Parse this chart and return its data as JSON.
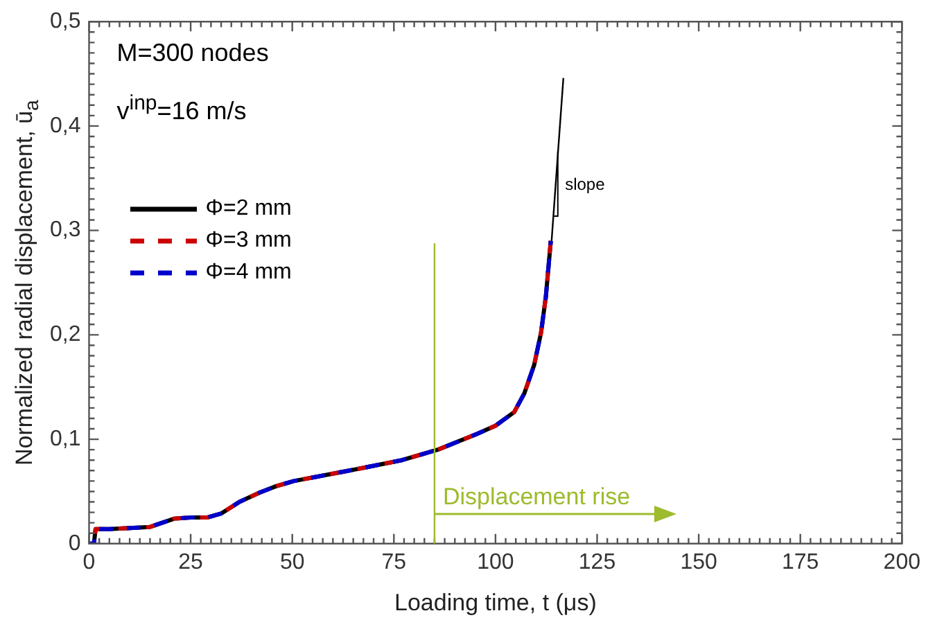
{
  "chart_data": {
    "type": "line",
    "xlabel": "Loading time, t (μs)",
    "ylabel": "Normalized radial displacement, ū$_{a}$",
    "x": [
      0,
      1.2,
      1.6,
      5,
      10,
      15,
      18,
      21,
      25,
      29,
      32.6,
      37,
      42,
      46,
      50.4,
      60,
      68,
      77,
      85.8,
      95.4,
      100,
      104.6,
      107.1,
      109.5,
      111.2,
      112.4,
      113.6
    ],
    "series": [
      {
        "name": "Φ=2 mm",
        "color": "#000000",
        "line_style": "solid",
        "values": [
          0,
          0,
          0.014,
          0.014,
          0.015,
          0.016,
          0.02,
          0.024,
          0.025,
          0.025,
          0.029,
          0.04,
          0.049,
          0.055,
          0.06,
          0.067,
          0.073,
          0.08,
          0.09,
          0.105,
          0.113,
          0.126,
          0.144,
          0.171,
          0.202,
          0.237,
          0.29
        ]
      },
      {
        "name": "Φ=3 mm",
        "color": "#cc0000",
        "line_style": "dashed",
        "values": [
          0,
          0,
          0.014,
          0.014,
          0.015,
          0.016,
          0.02,
          0.024,
          0.025,
          0.025,
          0.029,
          0.04,
          0.049,
          0.055,
          0.06,
          0.067,
          0.073,
          0.08,
          0.09,
          0.105,
          0.113,
          0.126,
          0.144,
          0.171,
          0.202,
          0.237,
          0.29
        ]
      },
      {
        "name": "Φ=4 mm",
        "color": "#0000cc",
        "line_style": "dashed",
        "values": [
          0,
          0,
          0.014,
          0.014,
          0.015,
          0.016,
          0.02,
          0.024,
          0.025,
          0.025,
          0.029,
          0.04,
          0.049,
          0.055,
          0.06,
          0.067,
          0.073,
          0.08,
          0.09,
          0.105,
          0.113,
          0.126,
          0.144,
          0.171,
          0.202,
          0.237,
          0.29
        ]
      },
      {
        "color": "#000000",
        "line_style": "solid",
        "x": [
          113.8,
          116.7
        ],
        "values": [
          0.29,
          0.446
        ]
      }
    ],
    "xlim": [
      0,
      200
    ],
    "xticks": [
      0,
      25,
      50,
      75,
      100,
      125,
      150,
      175,
      200
    ],
    "ylim": [
      0,
      0.5
    ],
    "yticks": [
      0,
      {
        "value": 0.1,
        "label": "0,1"
      },
      {
        "value": 0.2,
        "label": "0,2"
      },
      {
        "value": 0.3,
        "label": "0,3"
      },
      {
        "value": 0.4,
        "label": "0,4"
      },
      {
        "value": 0.5,
        "label": "0,5"
      }
    ],
    "ref_lines": [
      {
        "axis": "x",
        "value": 85,
        "color": "#9dbb2d"
      }
    ],
    "annotations": [
      "M=300 nodes",
      "v$^{inp}$=16 m/s",
      "slope",
      {
        "text": "Displacement rise",
        "x": 85,
        "y": 0.029
      }
    ],
    "legend": "left",
    "grid": false
  }
}
